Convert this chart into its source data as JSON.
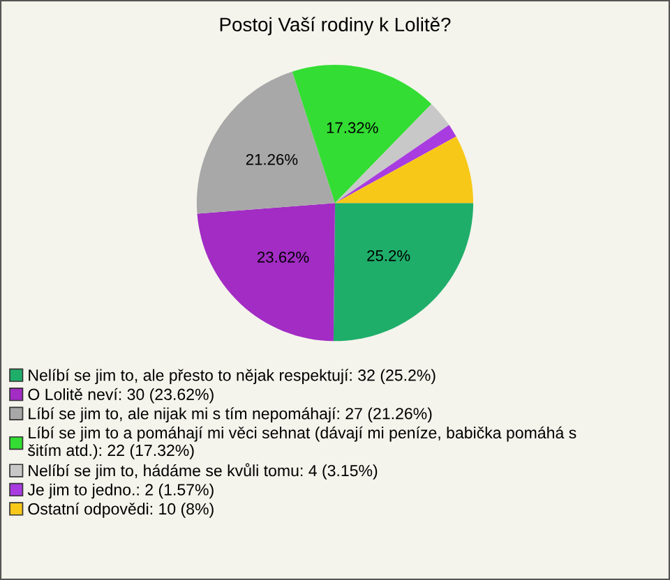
{
  "chart_data": {
    "type": "pie",
    "title": "Postoj Vaší rodiny k Lolitě?",
    "categories": [
      "Nelíbí se jim to, ale přesto to nějak respektují: 32 (25.2%)",
      "O Lolitě neví: 30 (23.62%)",
      "Líbí se jim to, ale nijak mi s tím nepomáhají: 27 (21.26%)",
      "Líbí se jim to a pomáhají mi věci sehnat (dávají mi peníze, babička pomáhá s\nšitím atd.): 22 (17.32%)",
      "Nelíbí se jim to, hádáme se kvůli tomu: 4 (3.15%)",
      "Je jim to jedno.: 2 (1.57%)",
      "Ostatní odpovědi: 10 (8%)"
    ],
    "values": [
      25.2,
      23.62,
      21.26,
      17.32,
      3.15,
      1.57,
      8
    ],
    "colors": [
      "#1fae6a",
      "#a22cc4",
      "#a8a8a8",
      "#33dd33",
      "#c8c8c8",
      "#a83ce0",
      "#f8c818"
    ],
    "value_labels": [
      "25.2%",
      "23.62%",
      "21.26%",
      "17.32%",
      null,
      null,
      null
    ],
    "legend": "bottom"
  }
}
